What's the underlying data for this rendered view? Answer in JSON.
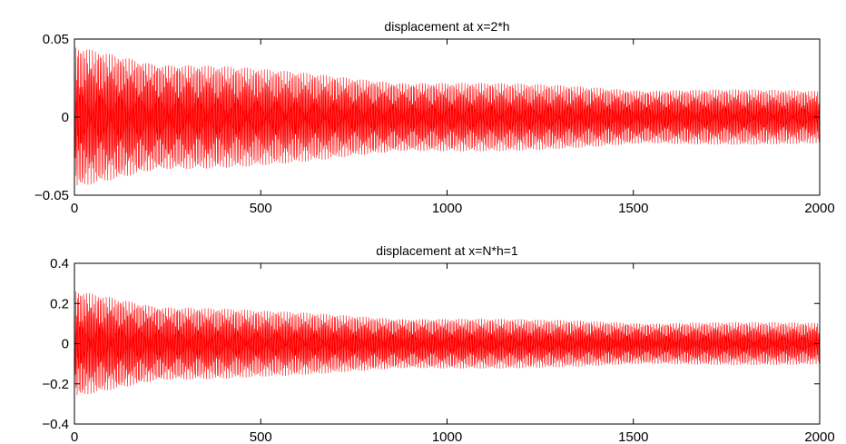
{
  "chart_data": [
    {
      "type": "line",
      "title": "displacement at x=2*h",
      "xlabel": "",
      "ylabel": "",
      "xlim": [
        0,
        2000
      ],
      "ylim": [
        -0.05,
        0.05
      ],
      "xticks": [
        0,
        500,
        1000,
        1500,
        2000
      ],
      "xtick_labels": [
        "0",
        "500",
        "1000",
        "1500",
        "2000"
      ],
      "yticks": [
        -0.05,
        0,
        0.05
      ],
      "ytick_labels": [
        "−0.05",
        "0",
        "0.05"
      ],
      "grid": false,
      "color": "#ff0000",
      "envelope": {
        "x": [
          0,
          250,
          500,
          750,
          1000,
          1250,
          1500,
          1750,
          2000
        ],
        "amplitude": [
          0.046,
          0.037,
          0.031,
          0.026,
          0.023,
          0.021,
          0.019,
          0.018,
          0.017
        ]
      }
    },
    {
      "type": "line",
      "title": "displacement at x=N*h=1",
      "xlabel": "",
      "ylabel": "",
      "xlim": [
        0,
        2000
      ],
      "ylim": [
        -0.4,
        0.4
      ],
      "xticks": [
        0,
        500,
        1000,
        1500,
        2000
      ],
      "xtick_labels": [
        "0",
        "500",
        "1000",
        "1500",
        "2000"
      ],
      "yticks": [
        -0.4,
        -0.2,
        0,
        0.2,
        0.4
      ],
      "ytick_labels": [
        "−0.4",
        "−0.2",
        "0",
        "0.2",
        "0.4"
      ],
      "grid": false,
      "color": "#ff0000",
      "envelope": {
        "x": [
          0,
          250,
          500,
          750,
          1000,
          1250,
          1500,
          1750,
          2000
        ],
        "amplitude": [
          0.27,
          0.2,
          0.165,
          0.145,
          0.13,
          0.12,
          0.113,
          0.108,
          0.105
        ]
      }
    }
  ]
}
